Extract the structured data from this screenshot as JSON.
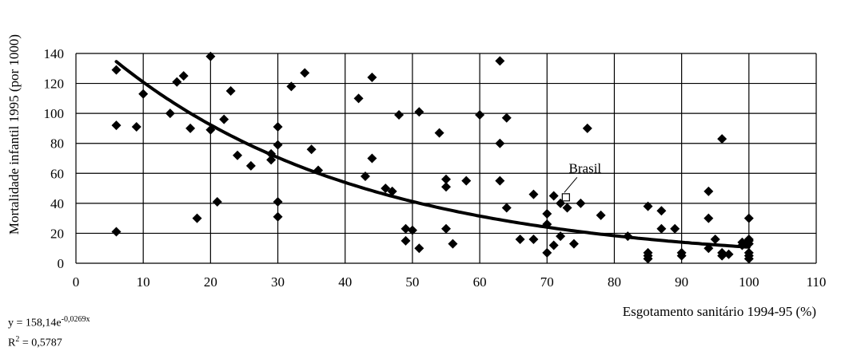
{
  "chart_data": {
    "type": "scatter",
    "title": "",
    "xlabel": "Esgotamento sanitário 1994-95 (%)",
    "ylabel": "Mortalidade infantil 1995 (por 1000)",
    "xlim": [
      0,
      110
    ],
    "ylim": [
      0,
      140
    ],
    "xticks": [
      "0",
      "10",
      "20",
      "30",
      "40",
      "50",
      "60",
      "70",
      "80",
      "90",
      "100",
      "110"
    ],
    "yticks": [
      "0",
      "20",
      "40",
      "60",
      "80",
      "100",
      "120",
      "140"
    ],
    "grid": true,
    "series": [
      {
        "marker": "diamond",
        "points": [
          [
            6,
            129
          ],
          [
            6,
            92
          ],
          [
            6,
            21
          ],
          [
            9,
            91
          ],
          [
            10,
            113
          ],
          [
            14,
            100
          ],
          [
            15,
            121
          ],
          [
            16,
            125
          ],
          [
            17,
            90
          ],
          [
            18,
            30
          ],
          [
            20,
            138
          ],
          [
            20,
            89
          ],
          [
            21,
            41
          ],
          [
            22,
            96
          ],
          [
            23,
            115
          ],
          [
            24,
            72
          ],
          [
            26,
            65
          ],
          [
            29,
            69
          ],
          [
            29,
            73
          ],
          [
            30,
            91
          ],
          [
            30,
            79
          ],
          [
            30,
            41
          ],
          [
            30,
            31
          ],
          [
            32,
            118
          ],
          [
            34,
            127
          ],
          [
            35,
            76
          ],
          [
            36,
            62
          ],
          [
            42,
            110
          ],
          [
            43,
            58
          ],
          [
            44,
            124
          ],
          [
            44,
            70
          ],
          [
            46,
            50
          ],
          [
            47,
            48
          ],
          [
            48,
            99
          ],
          [
            49,
            23
          ],
          [
            49,
            15
          ],
          [
            50,
            22
          ],
          [
            51,
            101
          ],
          [
            51,
            10
          ],
          [
            54,
            87
          ],
          [
            55,
            56
          ],
          [
            55,
            51
          ],
          [
            55,
            23
          ],
          [
            56,
            13
          ],
          [
            58,
            55
          ],
          [
            60,
            99
          ],
          [
            63,
            135
          ],
          [
            63,
            80
          ],
          [
            63,
            55
          ],
          [
            64,
            97
          ],
          [
            64,
            37
          ],
          [
            66,
            16
          ],
          [
            68,
            46
          ],
          [
            68,
            16
          ],
          [
            70,
            33
          ],
          [
            70,
            26
          ],
          [
            70,
            7
          ],
          [
            71,
            45
          ],
          [
            71,
            12
          ],
          [
            72,
            18
          ],
          [
            72,
            40
          ],
          [
            73,
            37
          ],
          [
            74,
            13
          ],
          [
            75,
            40
          ],
          [
            76,
            90
          ],
          [
            78,
            32
          ],
          [
            82,
            18
          ],
          [
            85,
            38
          ],
          [
            85,
            7
          ],
          [
            85,
            5
          ],
          [
            85,
            3
          ],
          [
            87,
            35
          ],
          [
            87,
            23
          ],
          [
            89,
            23
          ],
          [
            90,
            7
          ],
          [
            90,
            5
          ],
          [
            94,
            48
          ],
          [
            94,
            30
          ],
          [
            94,
            10
          ],
          [
            95,
            16
          ],
          [
            96,
            83
          ],
          [
            96,
            7
          ],
          [
            96,
            5
          ],
          [
            97,
            6
          ],
          [
            99,
            14
          ],
          [
            99,
            12
          ],
          [
            100,
            15
          ],
          [
            100,
            13
          ],
          [
            100,
            30
          ],
          [
            100,
            16
          ],
          [
            100,
            7
          ],
          [
            100,
            5
          ],
          [
            100,
            3
          ]
        ]
      }
    ],
    "highlight": {
      "label": "Brasil",
      "x": 72.8,
      "y": 44,
      "marker": "open-square"
    },
    "trendline": {
      "type": "exponential",
      "a": 158.14,
      "b": -0.0269,
      "x_range": [
        6,
        100
      ]
    },
    "equation_text": "y = 158,14e",
    "equation_exponent": "-0,0269x",
    "r2_text": "R",
    "r2_sup": "2",
    "r2_value": " = 0,5787"
  }
}
